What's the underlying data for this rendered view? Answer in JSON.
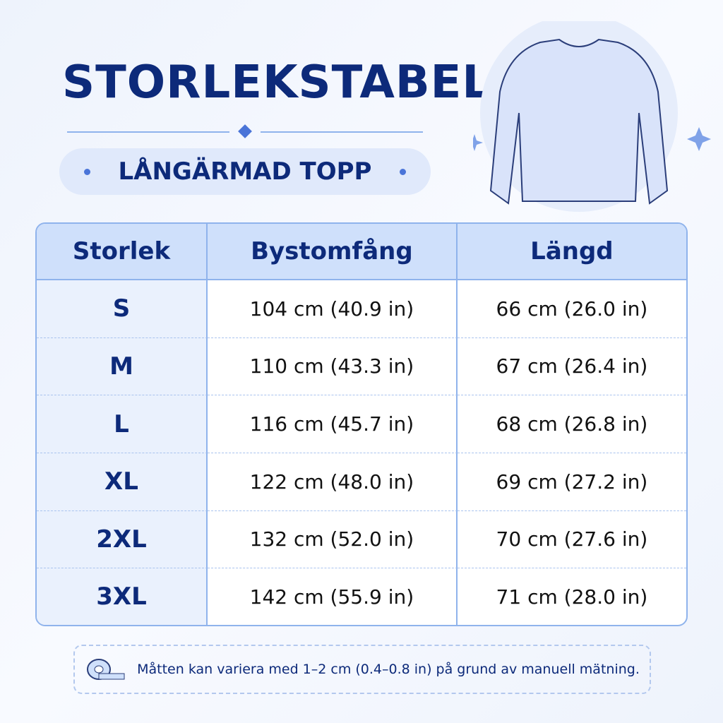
{
  "header": {
    "title": "STORLEKSTABELL",
    "subtitle": "LÅNGÄRMAD TOPP"
  },
  "table": {
    "columns": [
      "Storlek",
      "Bystomfång",
      "Längd"
    ],
    "rows": [
      [
        "S",
        "104 cm (40.9 in)",
        "66 cm (26.0 in)"
      ],
      [
        "M",
        "110 cm (43.3 in)",
        "67 cm (26.4 in)"
      ],
      [
        "L",
        "116 cm (45.7 in)",
        "68 cm (26.8 in)"
      ],
      [
        "XL",
        "122 cm (48.0 in)",
        "69 cm (27.2 in)"
      ],
      [
        "2XL",
        "132 cm (52.0 in)",
        "70 cm (27.6 in)"
      ],
      [
        "3XL",
        "142 cm (55.9 in)",
        "71 cm (28.0 in)"
      ]
    ]
  },
  "note": "Måtten kan variera med 1–2 cm (0.4–0.8 in) på grund av manuell mätning."
}
